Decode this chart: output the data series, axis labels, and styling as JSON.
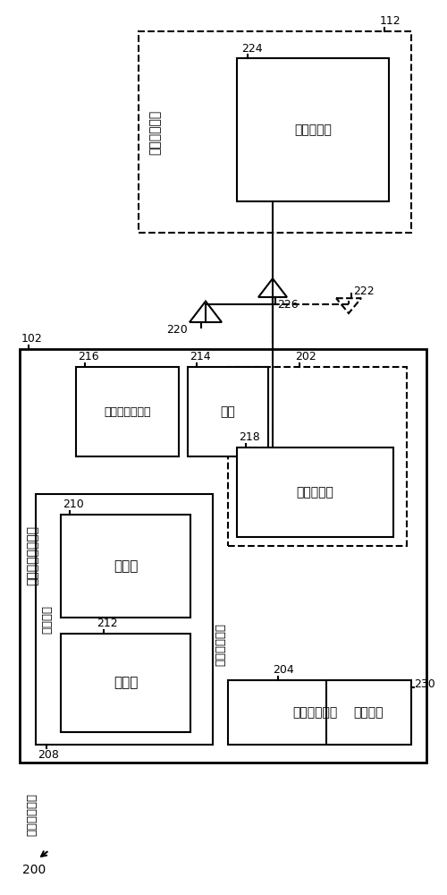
{
  "bg_color": "#ffffff",
  "fig_width": 5.0,
  "fig_height": 10.0,
  "labels": {
    "remote_system": "远程电子系统",
    "remote_transceiver": "收发器电路",
    "trainable_unit": "可训练收发器单元",
    "control_circuit": "控制电路",
    "processor": "处理器",
    "memory": "存储器",
    "voltage_regulator": "电压调节器电路",
    "battery": "电池",
    "transceiver": "收发器电路",
    "user_interface": "用户接口元件",
    "user_input": "用户输入装置",
    "security_module": "安全模块",
    "ref_200": "200",
    "ref_102": "102",
    "ref_112": "112",
    "ref_202": "202",
    "ref_204": "204",
    "ref_208": "208",
    "ref_210": "210",
    "ref_212": "212",
    "ref_214": "214",
    "ref_216": "216",
    "ref_218": "218",
    "ref_220": "220",
    "ref_222": "222",
    "ref_224": "224",
    "ref_226": "226",
    "ref_230": "230"
  }
}
